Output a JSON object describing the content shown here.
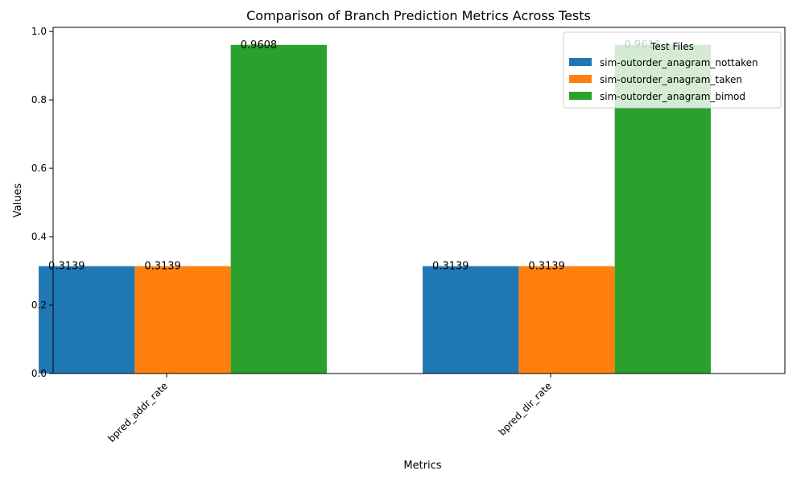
{
  "chart_data": {
    "type": "bar",
    "title": "Comparison of Branch Prediction Metrics Across Tests",
    "xlabel": "Metrics",
    "ylabel": "Values",
    "categories": [
      "bpred_addr_rate",
      "bpred_dir_rate"
    ],
    "ylim": [
      0,
      1.0
    ],
    "yticks": [
      "0.0",
      "0.2",
      "0.4",
      "0.6",
      "0.8",
      "1.0"
    ],
    "legend": {
      "title": "Test Files",
      "placement": "top-right"
    },
    "grid": false,
    "series": [
      {
        "name": "sim-outorder_anagram_nottaken",
        "color": "#1f77b4",
        "values": [
          0.3139,
          0.3139
        ],
        "labels": [
          "0.3139",
          "0.3139"
        ]
      },
      {
        "name": "sim-outorder_anagram_taken",
        "color": "#ff7f0e",
        "values": [
          0.3139,
          0.3139
        ],
        "labels": [
          "0.3139",
          "0.3139"
        ]
      },
      {
        "name": "sim-outorder_anagram_bimod",
        "color": "#2ca02c",
        "values": [
          0.9608,
          0.9611
        ],
        "labels": [
          "0.9608",
          "0.9611"
        ]
      }
    ]
  }
}
